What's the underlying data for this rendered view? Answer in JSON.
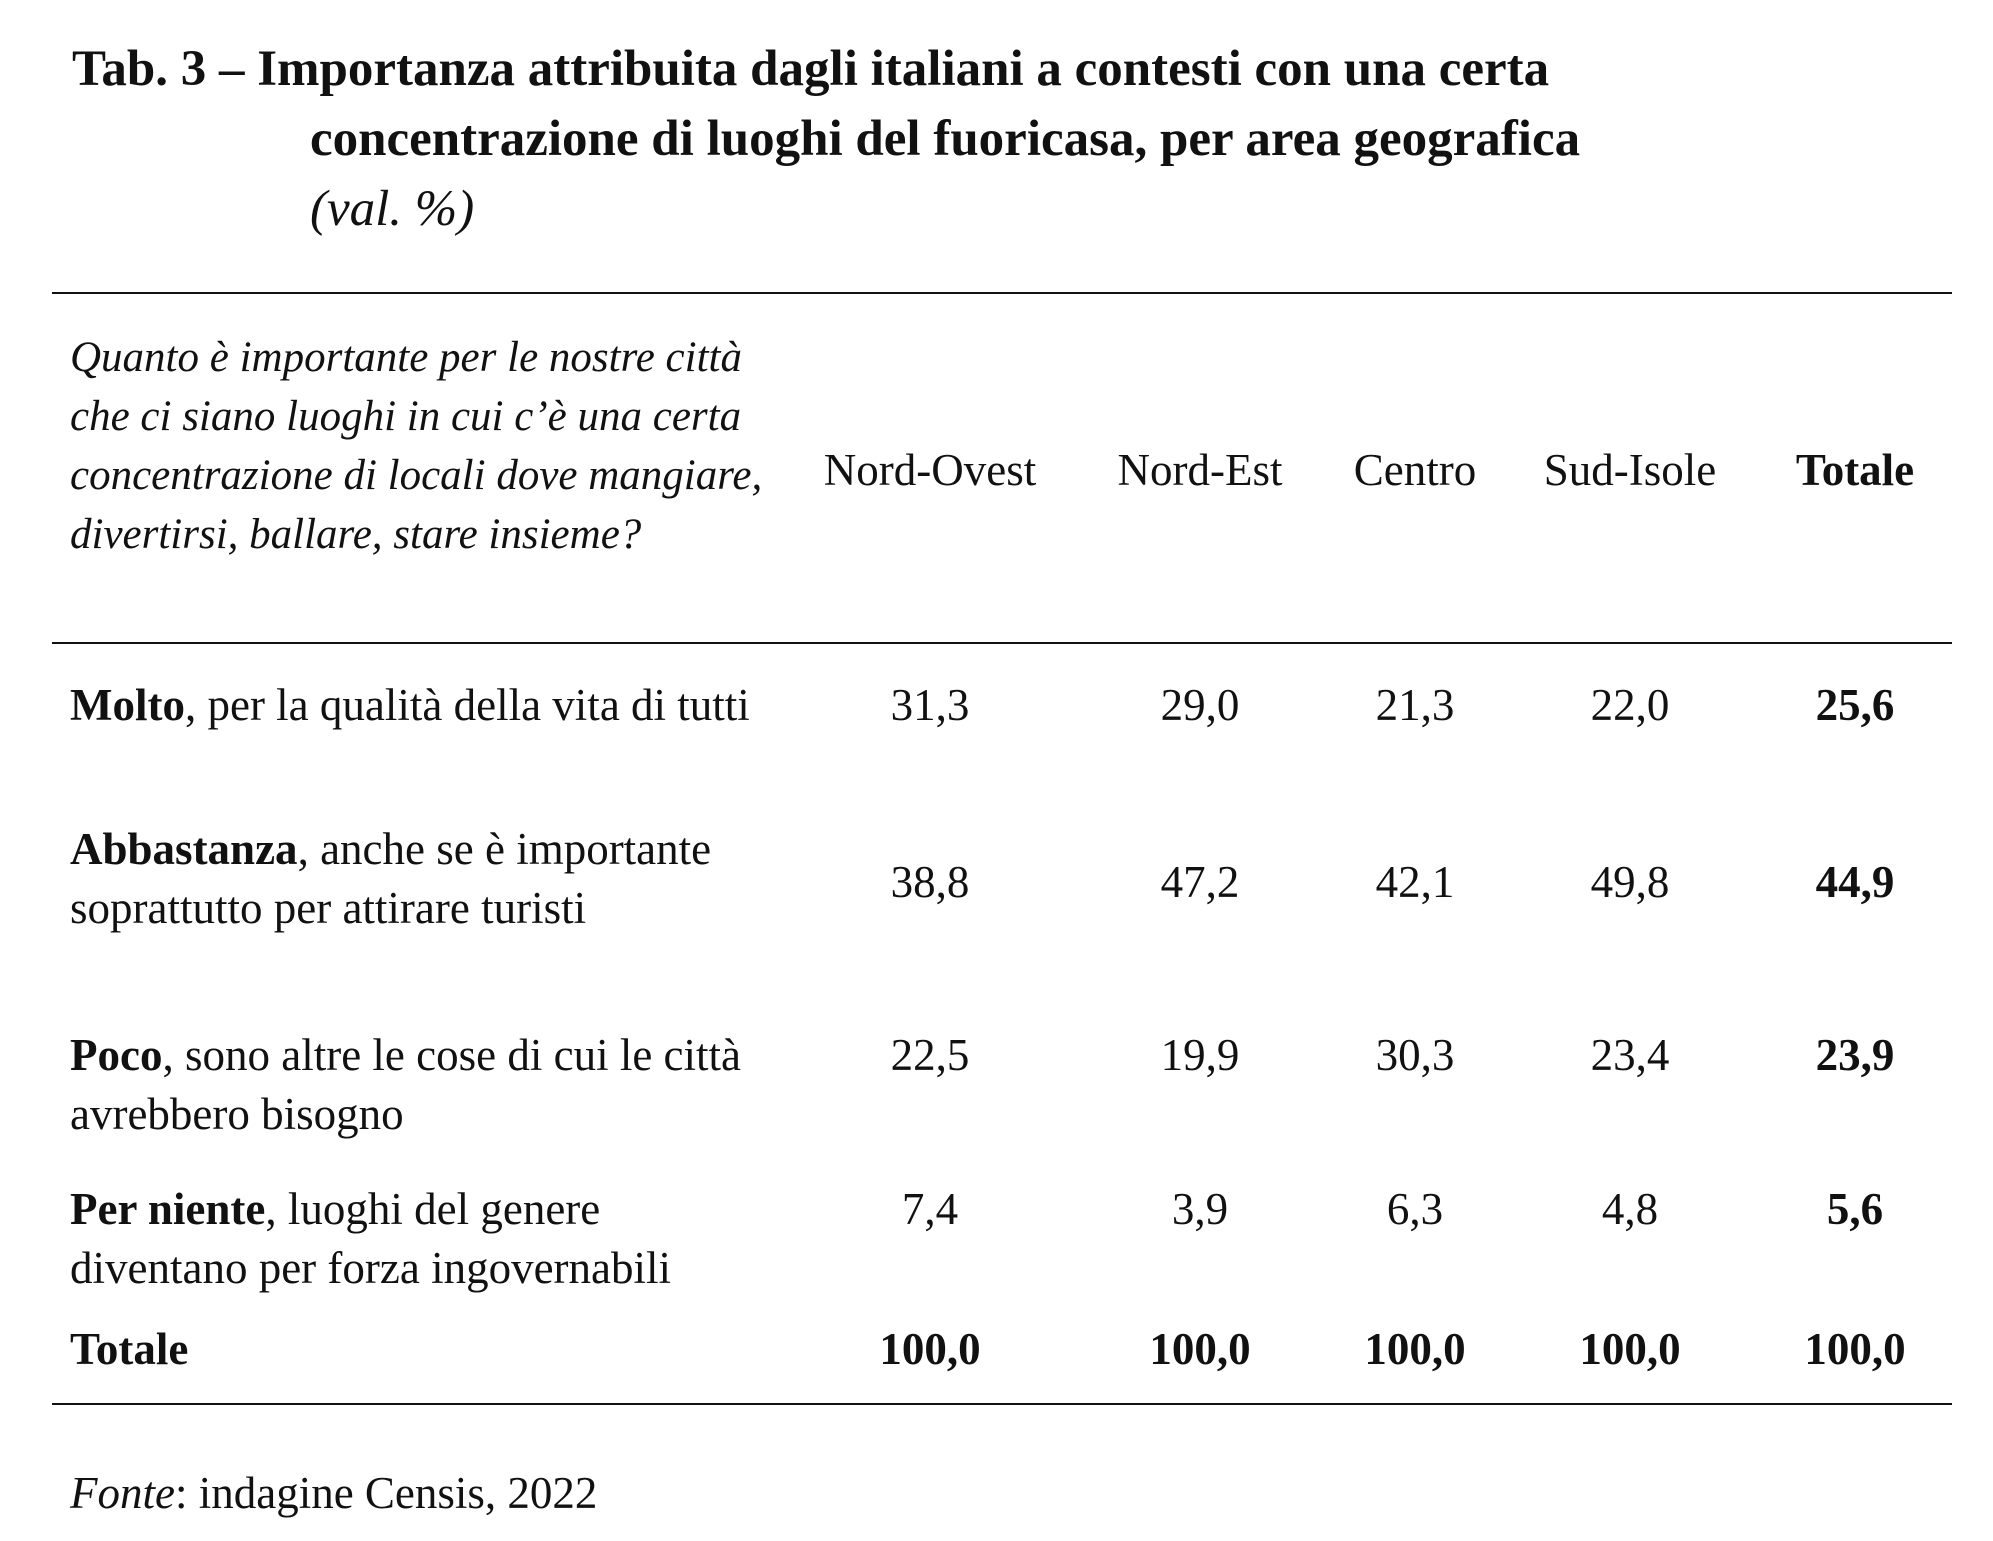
{
  "title": {
    "prefix": "Tab. 3 – Importanza attribuita dagli italiani a contesti con una certa",
    "line2": "concentrazione di luoghi del fuoricasa, per area geografica",
    "unit": "(val. %)"
  },
  "table": {
    "question": "Quanto è importante per le nostre città che ci siano luoghi in cui c’è una certa concentrazione di locali dove mangiare, divertirsi, ballare, stare insieme?",
    "columns": [
      "Nord-Ovest",
      "Nord-Est",
      "Centro",
      "Sud-Isole",
      "Totale"
    ],
    "rows": [
      {
        "label_bold": "Molto",
        "label_rest": ", per la qualità della vita di tutti",
        "values": [
          "31,3",
          "29,0",
          "21,3",
          "22,0",
          "25,6"
        ]
      },
      {
        "label_bold": "Abbastanza",
        "label_rest": ", anche se è importante soprattutto per attirare turisti",
        "values": [
          "38,8",
          "47,2",
          "42,1",
          "49,8",
          "44,9"
        ]
      },
      {
        "label_bold": "Poco",
        "label_rest": ", sono altre le cose di cui le città avrebbero bisogno",
        "values": [
          "22,5",
          "19,9",
          "30,3",
          "23,4",
          "23,9"
        ]
      },
      {
        "label_bold": "Per niente",
        "label_rest": ", luoghi del genere diventano per forza ingovernabili",
        "values": [
          "7,4",
          "3,9",
          "6,3",
          "4,8",
          "5,6"
        ]
      }
    ],
    "total_row": {
      "label": "Totale",
      "values": [
        "100,0",
        "100,0",
        "100,0",
        "100,0",
        "100,0"
      ]
    }
  },
  "source": {
    "label": "Fonte",
    "text": ": indagine Censis, 2022"
  }
}
